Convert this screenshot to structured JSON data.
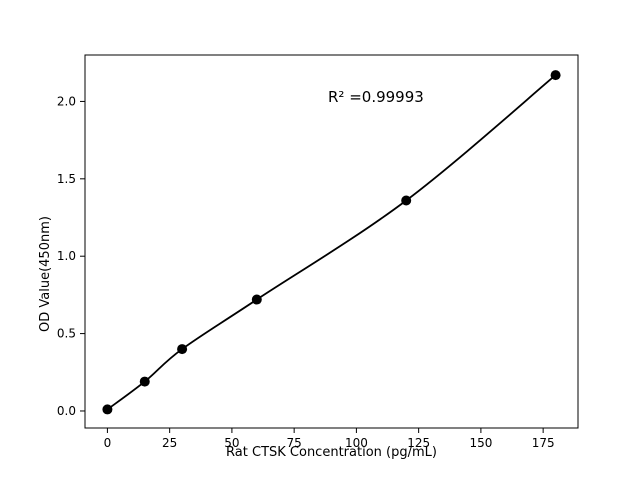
{
  "chart_data": {
    "type": "scatter",
    "x": [
      0,
      15,
      30,
      60,
      120,
      180
    ],
    "y": [
      0.01,
      0.19,
      0.4,
      0.72,
      1.36,
      2.17
    ],
    "fit_line": "smooth curve through points",
    "annotation": "R² =0.99993",
    "xlabel": "Rat CTSK Concentration (pg/mL)",
    "ylabel": "OD Value(450nm)",
    "xlim": [
      -9,
      189
    ],
    "ylim": [
      -0.11,
      2.3
    ],
    "xticks": [
      0,
      25,
      50,
      75,
      100,
      125,
      150,
      175
    ],
    "yticks": [
      0.0,
      0.5,
      1.0,
      1.5,
      2.0
    ],
    "grid": false,
    "legend": "none",
    "marker_color": "#000000",
    "line_color": "#000000",
    "background_color": "#ffffff"
  }
}
